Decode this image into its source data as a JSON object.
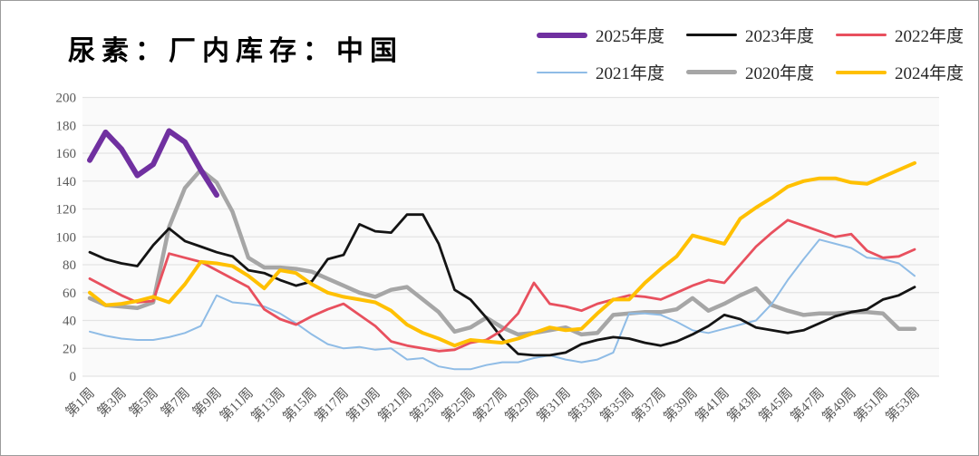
{
  "title": "尿素：厂内库存：中国",
  "legend": {
    "rows": [
      [
        "2025年度",
        "2023年度",
        "2022年度"
      ],
      [
        "2021年度",
        "2020年度",
        "2024年度"
      ]
    ]
  },
  "colors": {
    "axis_text": "#595959",
    "gridline": "#e3e3e3",
    "plot_bg": "#fafafa"
  },
  "chart_data": {
    "type": "line",
    "title": "尿素：厂内库存：中国",
    "xlabel": "",
    "ylabel": "",
    "ylim": [
      0,
      200
    ],
    "ytick_step": 20,
    "y_tick_labels": [
      "0",
      "20",
      "40",
      "60",
      "80",
      "100",
      "120",
      "140",
      "160",
      "180",
      "200"
    ],
    "x_tick_labels": [
      "第1周",
      "第3周",
      "第5周",
      "第7周",
      "第9周",
      "第11周",
      "第13周",
      "第15周",
      "第17周",
      "第19周",
      "第21周",
      "第23周",
      "第25周",
      "第27周",
      "第29周",
      "第31周",
      "第33周",
      "第35周",
      "第37周",
      "第39周",
      "第41周",
      "第43周",
      "第45周",
      "第47周",
      "第49周",
      "第51周",
      "第53周"
    ],
    "x_weeks_total": 53,
    "grid": "horizontal",
    "legend_position": "top-right",
    "series": [
      {
        "name": "2025年度",
        "color": "#7030A0",
        "width": 6,
        "values": [
          155,
          175,
          163,
          144,
          152,
          176,
          168,
          148,
          130
        ]
      },
      {
        "name": "2023年度",
        "color": "#141414",
        "width": 2.8,
        "values": [
          89,
          84,
          81,
          79,
          94,
          106,
          97,
          93,
          89,
          86,
          76,
          74,
          69,
          65,
          68,
          84,
          87,
          109,
          104,
          103,
          116,
          116,
          95,
          62,
          55,
          42,
          27,
          16,
          15,
          15,
          17,
          23,
          26,
          28,
          27,
          24,
          22,
          25,
          30,
          36,
          44,
          41,
          35,
          33,
          31,
          33,
          38,
          43,
          46,
          48,
          55,
          58,
          64
        ]
      },
      {
        "name": "2022年度",
        "color": "#E8505E",
        "width": 2.8,
        "values": [
          70,
          64,
          58,
          53,
          54,
          88,
          85,
          82,
          76,
          70,
          64,
          48,
          41,
          37,
          43,
          48,
          52,
          44,
          36,
          25,
          22,
          20,
          18,
          19,
          24,
          26,
          33,
          45,
          67,
          52,
          50,
          47,
          52,
          55,
          58,
          57,
          55,
          60,
          65,
          69,
          67,
          80,
          93,
          103,
          112,
          108,
          104,
          100,
          102,
          90,
          85,
          86,
          91
        ]
      },
      {
        "name": "2021年度",
        "color": "#8FBCE6",
        "width": 2,
        "values": [
          32,
          29,
          27,
          26,
          26,
          28,
          31,
          36,
          58,
          53,
          52,
          50,
          45,
          38,
          30,
          23,
          20,
          21,
          19,
          20,
          12,
          13,
          7,
          5,
          5,
          8,
          10,
          10,
          13,
          15,
          12,
          10,
          12,
          17,
          45,
          45,
          44,
          39,
          33,
          31,
          34,
          37,
          40,
          52,
          69,
          84,
          98,
          95,
          92,
          85,
          84,
          81,
          72
        ]
      },
      {
        "name": "2020年度",
        "color": "#A6A6A6",
        "width": 4.5,
        "values": [
          56,
          51,
          50,
          49,
          53,
          107,
          135,
          148,
          139,
          118,
          85,
          78,
          78,
          77,
          75,
          70,
          65,
          60,
          57,
          62,
          64,
          55,
          46,
          32,
          35,
          42,
          35,
          30,
          31,
          33,
          35,
          30,
          31,
          44,
          45,
          46,
          46,
          48,
          56,
          47,
          52,
          58,
          63,
          51,
          47,
          44,
          45,
          45,
          46,
          46,
          45,
          34,
          34
        ]
      },
      {
        "name": "2024年度",
        "color": "#FFC000",
        "width": 4,
        "values": [
          60,
          51,
          52,
          54,
          57,
          53,
          66,
          82,
          81,
          79,
          72,
          63,
          76,
          74,
          66,
          60,
          57,
          55,
          53,
          47,
          37,
          31,
          27,
          22,
          26,
          25,
          24,
          27,
          31,
          35,
          33,
          34,
          45,
          55,
          55,
          67,
          77,
          86,
          101,
          98,
          95,
          113,
          121,
          128,
          136,
          140,
          142,
          142,
          139,
          138,
          143,
          148,
          153
        ]
      }
    ],
    "draw_order": [
      "2020年度",
      "2021年度",
      "2023年度",
      "2022年度",
      "2024年度",
      "2025年度"
    ]
  }
}
